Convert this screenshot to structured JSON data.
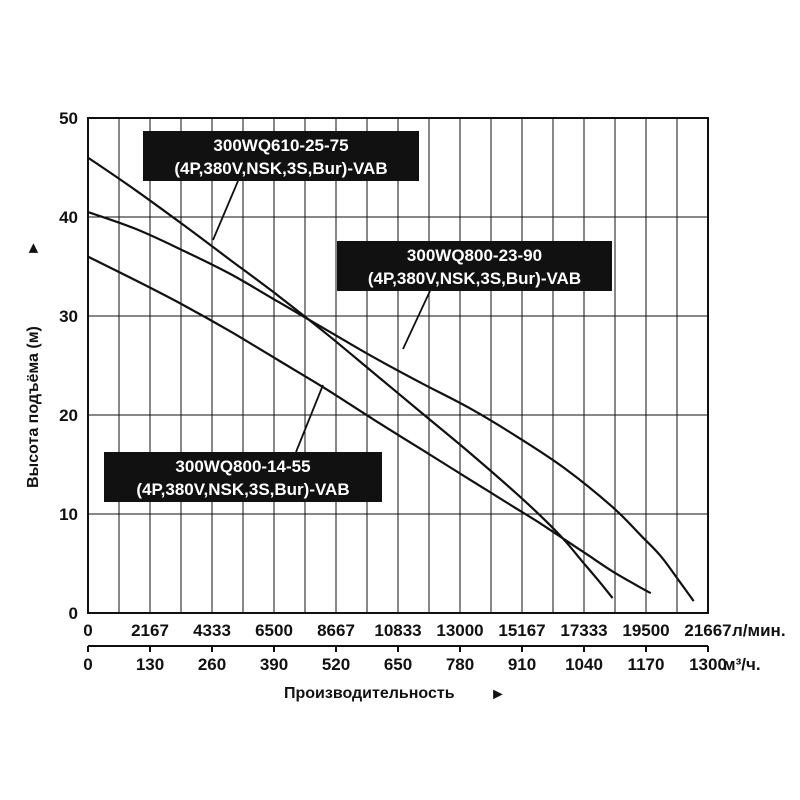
{
  "chart_data": {
    "type": "line",
    "xlabel": "Производительность",
    "ylabel": "Высота подъёма (м)",
    "xlim": [
      0,
      1300
    ],
    "ylim": [
      0,
      50
    ],
    "x_ticks_m3h": [
      "0",
      "130",
      "260",
      "390",
      "520",
      "650",
      "780",
      "910",
      "1040",
      "1170",
      "1300"
    ],
    "x_ticks_lmin": [
      "0",
      "2167",
      "4333",
      "6500",
      "8667",
      "10833",
      "13000",
      "15167",
      "17333",
      "19500",
      "21667"
    ],
    "y_ticks": [
      "0",
      "10",
      "20",
      "30",
      "40",
      "50"
    ],
    "unit_lmin": "л/мин.",
    "unit_m3h": "м³/ч.",
    "arrow_right": "►",
    "arrow_up": "►",
    "series": [
      {
        "name": "300WQ610-25-75",
        "subtitle": "(4P,380V,NSK,3S,Bur)-VAB",
        "x": [
          0,
          100,
          200,
          300,
          400,
          500,
          600,
          700,
          800,
          900,
          960,
          1000,
          1040,
          1070,
          1100
        ],
        "y": [
          46,
          42.7,
          39.2,
          35.6,
          32,
          28.2,
          24.2,
          20.2,
          16.2,
          12,
          9.3,
          7.3,
          5,
          3.3,
          1.5
        ]
      },
      {
        "name": "300WQ800-23-90",
        "subtitle": "(4P,380V,NSK,3S,Bur)-VAB",
        "x": [
          0,
          100,
          200,
          300,
          400,
          500,
          600,
          700,
          800,
          900,
          1000,
          1100,
          1160,
          1200,
          1240,
          1270
        ],
        "y": [
          40.5,
          38.8,
          36.6,
          34.2,
          31.4,
          28.6,
          25.8,
          23.2,
          20.7,
          17.8,
          14.6,
          10.7,
          7.8,
          5.8,
          3.2,
          1.2
        ]
      },
      {
        "name": "300WQ800-14-55",
        "subtitle": "(4P,380V,NSK,3S,Bur)-VAB",
        "x": [
          0,
          100,
          200,
          300,
          400,
          500,
          600,
          700,
          800,
          900,
          950,
          1000,
          1050,
          1100,
          1150,
          1180
        ],
        "y": [
          36,
          33.6,
          31.1,
          28.4,
          25.5,
          22.6,
          19.5,
          16.5,
          13.5,
          10.5,
          9,
          7.4,
          5.8,
          4.2,
          2.8,
          2
        ]
      }
    ],
    "grid": true
  }
}
